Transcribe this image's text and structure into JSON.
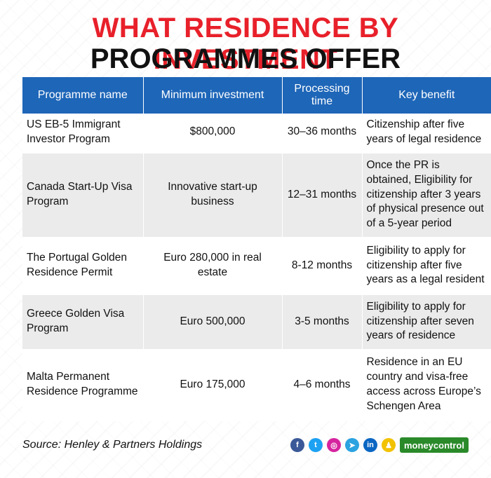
{
  "title_line1": "WHAT RESIDENCE BY INVESTMENT",
  "title_line2": "PROGRAMMES OFFER",
  "table": {
    "headers": [
      "Programme name",
      "Minimum investment",
      "Processing time",
      "Key benefit"
    ],
    "rows": [
      [
        "US EB-5 Immigrant Investor Program",
        "$800,000",
        "30–36 months",
        "Citizenship after five years of legal residence"
      ],
      [
        "Canada Start-Up Visa Program",
        "Innovative start-up business",
        "12–31 months",
        "Once the PR is obtained, Eligibility for citizenship after 3 years of physical presence out of a 5-year period"
      ],
      [
        "The Portugal Golden Residence Permit",
        "Euro 280,000 in real estate",
        "8-12 months",
        "Eligibility to apply for citizenship after five years as a legal resident"
      ],
      [
        "Greece Golden Visa Program",
        "Euro 500,000",
        "3-5 months",
        "Eligibility to apply for citizenship after seven years of residence"
      ],
      [
        "Malta Permanent Residence Programme",
        "Euro 175,000",
        "4–6 months",
        "Residence in an EU country and visa-free access across Europe’s Schengen Area"
      ]
    ]
  },
  "footer": {
    "source": "Source: Henley & Partners Holdings",
    "brand": "moneycontrol",
    "social_icons": [
      {
        "name": "facebook-icon",
        "glyph": "f",
        "color": "#3b5998"
      },
      {
        "name": "twitter-icon",
        "glyph": "t",
        "color": "#1da1f2"
      },
      {
        "name": "instagram-icon",
        "glyph": "◎",
        "color": "#d6249f"
      },
      {
        "name": "telegram-icon",
        "glyph": "➤",
        "color": "#2aa3e0"
      },
      {
        "name": "linkedin-icon",
        "glyph": "in",
        "color": "#0a66c2"
      },
      {
        "name": "snapchat-icon",
        "glyph": "♟",
        "color": "#f2c200"
      }
    ]
  }
}
